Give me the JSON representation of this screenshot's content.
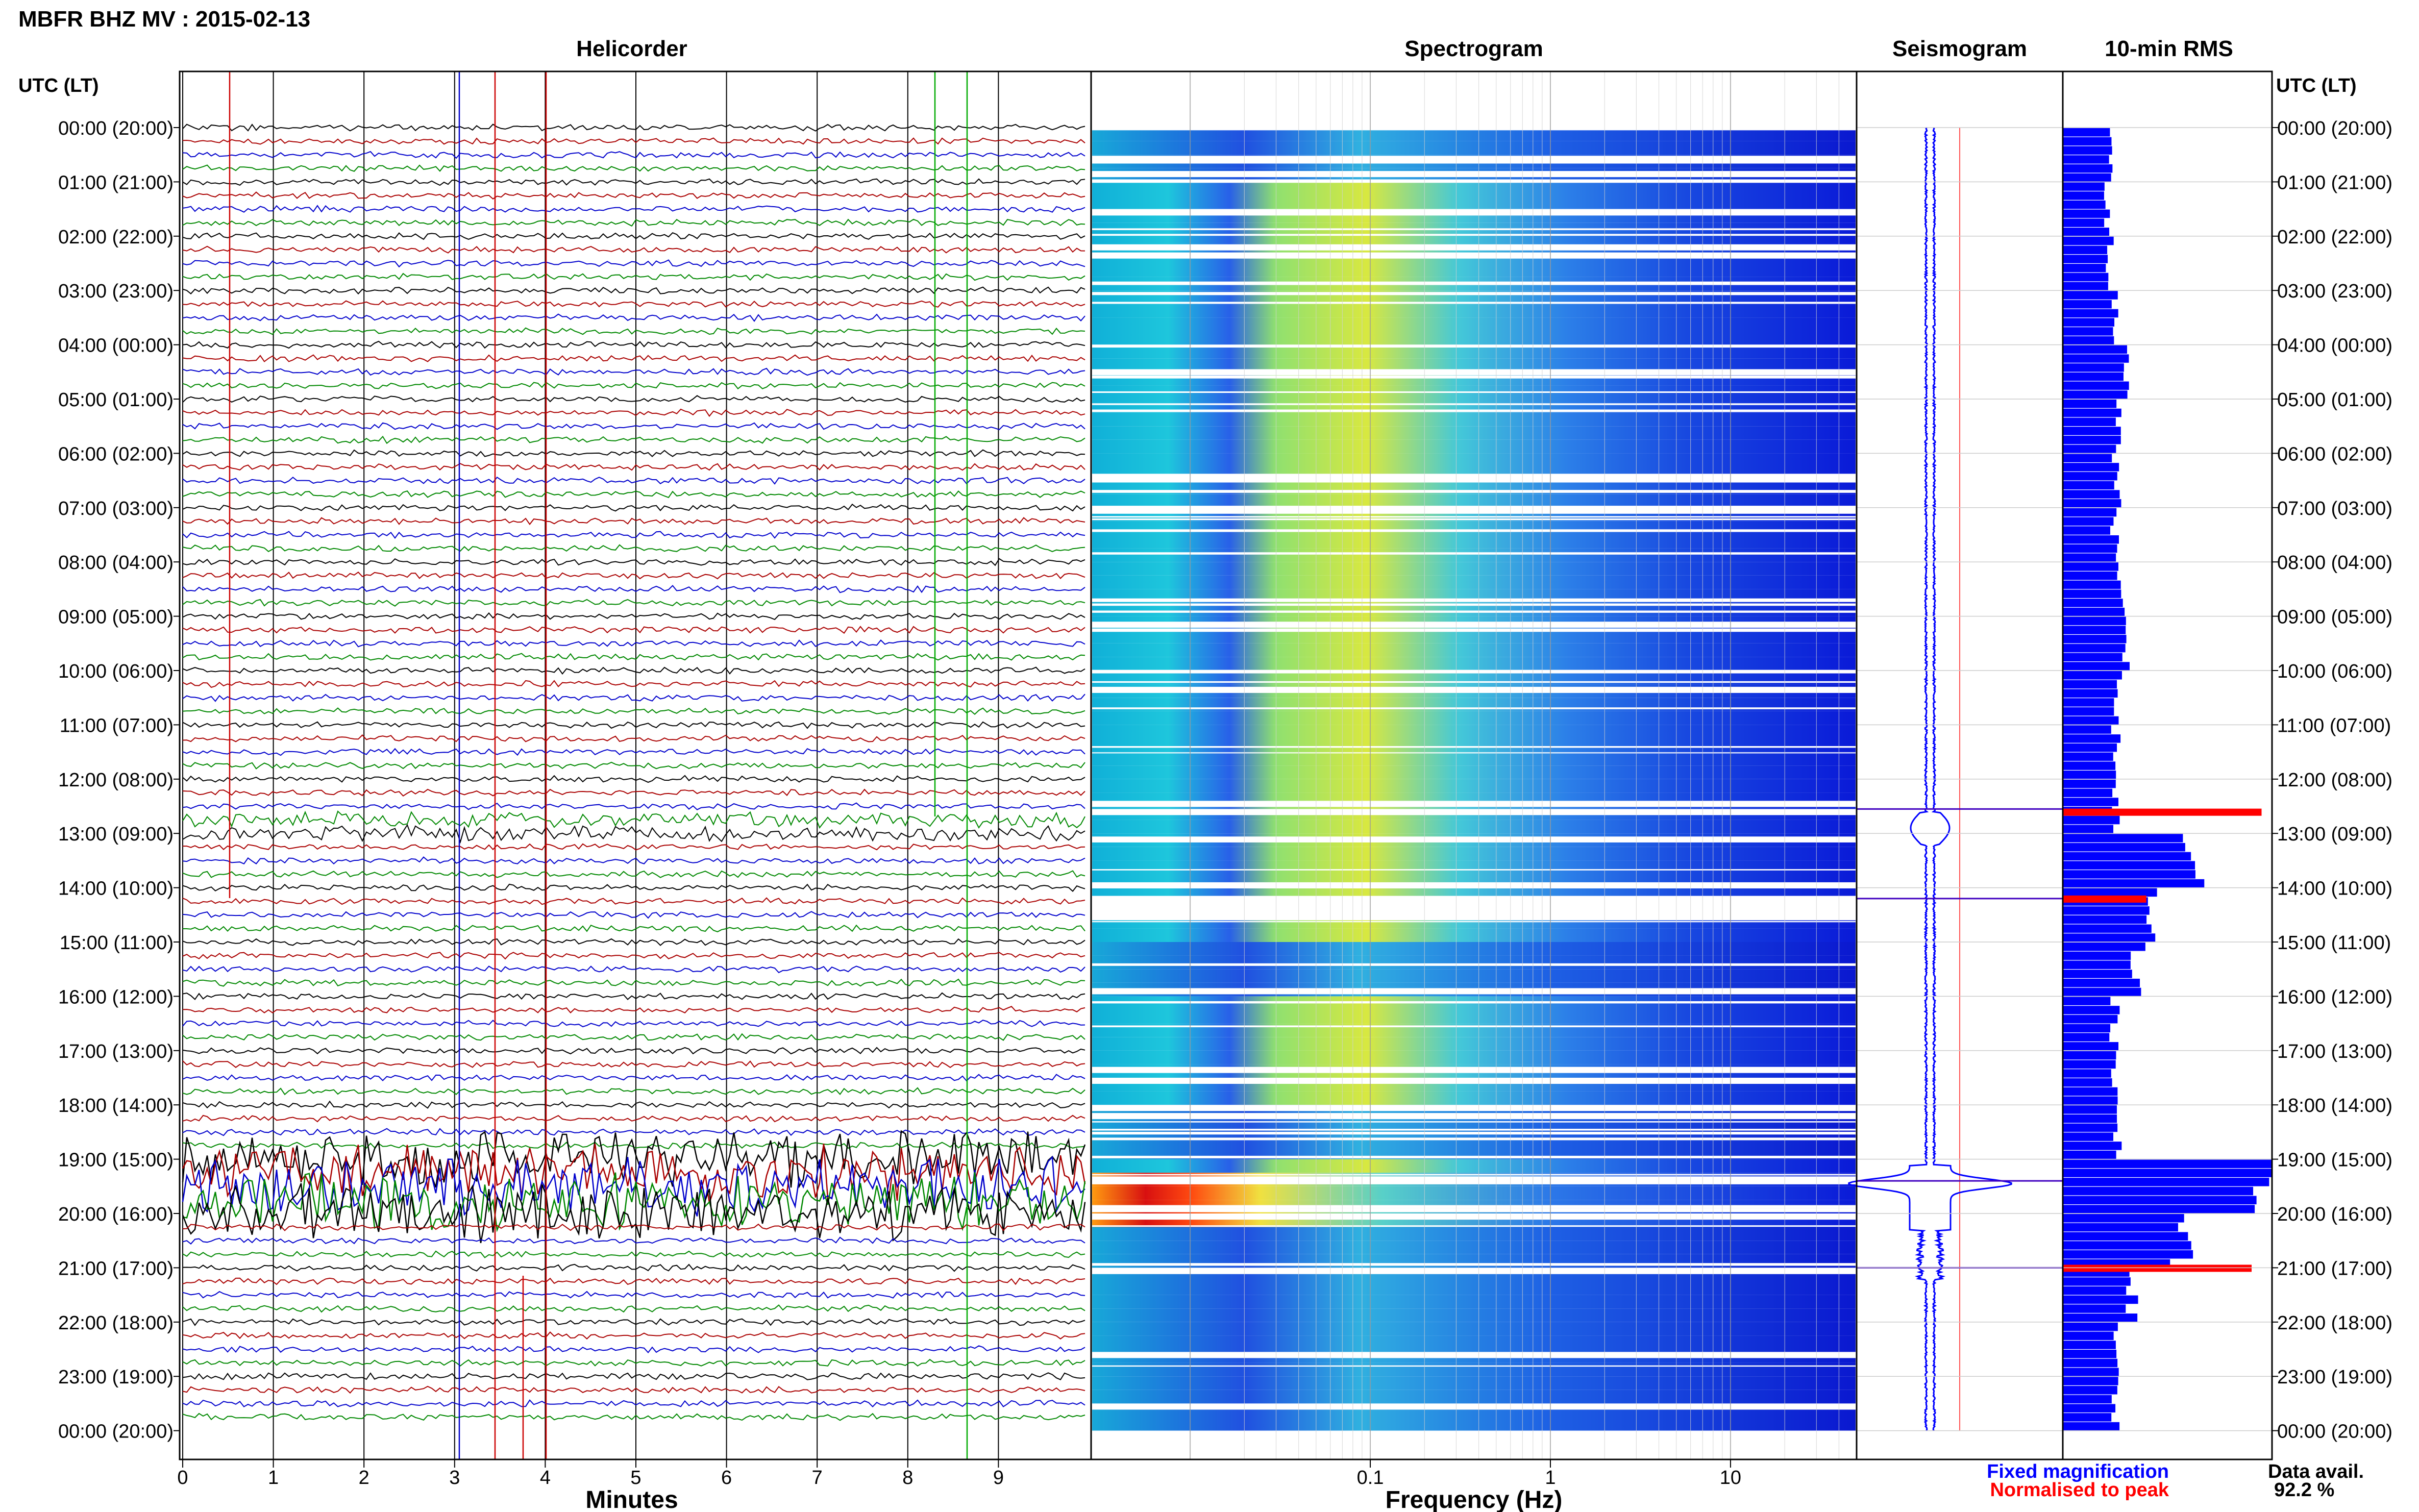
{
  "header": {
    "title": "MBFR BHZ MV : 2015-02-13",
    "utc_label_left": "UTC (LT)",
    "utc_label_right": "UTC (LT)"
  },
  "panels": {
    "helicorder": "Helicorder",
    "spectrogram": "Spectrogram",
    "seismogram": "Seismogram",
    "rms": "10-min RMS"
  },
  "axes": {
    "minutes_label": "Minutes",
    "frequency_label": "Frequency (Hz)",
    "minute_ticks": [
      "0",
      "1",
      "2",
      "3",
      "4",
      "5",
      "6",
      "7",
      "8",
      "9"
    ],
    "frequency_ticks": [
      "0.1",
      "1",
      "10"
    ]
  },
  "hour_labels": [
    "00:00 (20:00)",
    "01:00 (21:00)",
    "02:00 (22:00)",
    "03:00 (23:00)",
    "04:00 (00:00)",
    "05:00 (01:00)",
    "06:00 (02:00)",
    "07:00 (03:00)",
    "08:00 (04:00)",
    "09:00 (05:00)",
    "10:00 (06:00)",
    "11:00 (07:00)",
    "12:00 (08:00)",
    "13:00 (09:00)",
    "14:00 (10:00)",
    "15:00 (11:00)",
    "16:00 (12:00)",
    "17:00 (13:00)",
    "18:00 (14:00)",
    "19:00 (15:00)",
    "20:00 (16:00)",
    "21:00 (17:00)",
    "22:00 (18:00)",
    "23:00 (19:00)",
    "00:00 (20:00)"
  ],
  "legend": {
    "fixed": "Fixed magnification",
    "normalised": "Normalised to peak",
    "data_avail_label": "Data avail.",
    "data_avail_value": "92.2 %"
  },
  "colors": {
    "blue": "#0000ff",
    "red": "#ff0000",
    "trace_black": "#000000",
    "trace_red": "#aa0000",
    "trace_blue": "#0000cc",
    "trace_green": "#008800"
  },
  "chart_data": {
    "type": "bar",
    "x_unit": "hour of day (UTC)",
    "rms_fixed_by_hour": [
      0.22,
      0.21,
      0.22,
      0.24,
      0.28,
      0.26,
      0.25,
      0.24,
      0.27,
      0.3,
      0.26,
      0.25,
      0.24,
      0.6,
      0.4,
      0.35,
      0.24,
      0.24,
      0.25,
      0.95,
      0.55,
      0.32,
      0.26,
      0.24
    ],
    "rms_normalised_peaks": [
      {
        "hour": 12.6,
        "value": 1.0
      },
      {
        "hour": 14.2,
        "value": 0.42
      },
      {
        "hour": 21.0,
        "value": 0.95
      }
    ],
    "event_hours": [
      12.55,
      14.2,
      19.4,
      21.0
    ]
  }
}
